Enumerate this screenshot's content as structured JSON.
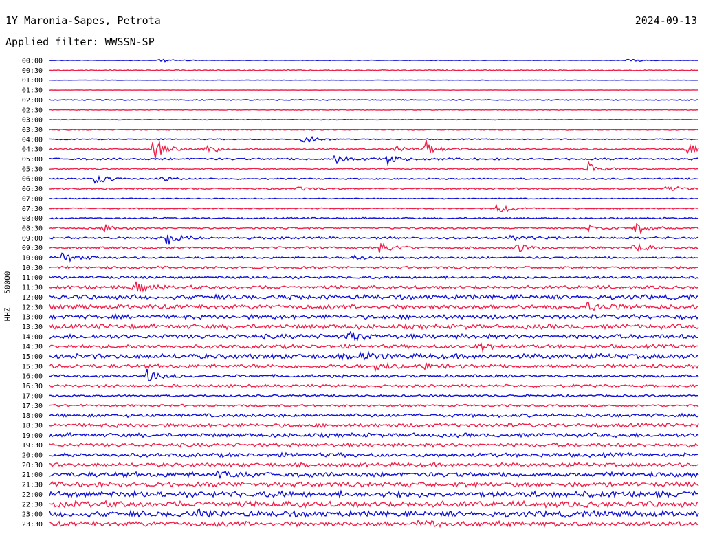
{
  "header": {
    "station": "1Y Maronia-Sapes, Petrota",
    "date": "2024-09-13",
    "filter_label": "Applied filter: WWSSN-SP"
  },
  "colors": {
    "trace_a": "#0f0fd6",
    "trace_b": "#f01f4a"
  },
  "chart_data": {
    "type": "line",
    "title": "1Y Maronia-Sapes, Petrota",
    "ylabel": "HHZ - 50000",
    "rows": [
      "00:00",
      "00:30",
      "01:00",
      "01:30",
      "02:00",
      "02:30",
      "03:00",
      "03:30",
      "04:00",
      "04:30",
      "05:00",
      "05:30",
      "06:00",
      "06:30",
      "07:00",
      "07:30",
      "08:00",
      "08:30",
      "09:00",
      "09:30",
      "10:00",
      "10:30",
      "11:00",
      "11:30",
      "12:00",
      "12:30",
      "13:00",
      "13:30",
      "14:00",
      "14:30",
      "15:00",
      "15:30",
      "16:00",
      "16:30",
      "17:00",
      "17:30",
      "18:00",
      "18:30",
      "19:00",
      "19:30",
      "20:00",
      "20:30",
      "21:00",
      "21:30",
      "22:00",
      "22:30",
      "23:00",
      "23:30"
    ],
    "noise_level": [
      0.3,
      0.6,
      0.2,
      0.2,
      0.6,
      0.4,
      0.3,
      0.5,
      0.6,
      0.8,
      1.2,
      0.8,
      0.8,
      0.9,
      0.6,
      0.7,
      0.9,
      1.0,
      1.3,
      1.3,
      1.2,
      1.5,
      1.6,
      2.0,
      2.6,
      2.6,
      2.6,
      2.8,
      2.7,
      2.3,
      3.0,
      2.4,
      1.6,
      1.6,
      1.2,
      1.4,
      2.0,
      2.3,
      2.4,
      2.2,
      2.4,
      2.3,
      2.8,
      2.9,
      3.6,
      3.6,
      3.5,
      3.0
    ],
    "events": [
      {
        "row": "00:00",
        "t": 0.17,
        "amp": 3
      },
      {
        "row": "00:00",
        "t": 0.89,
        "amp": 3
      },
      {
        "row": "04:00",
        "t": 0.39,
        "amp": 9
      },
      {
        "row": "04:30",
        "t": 0.16,
        "amp": 16
      },
      {
        "row": "04:30",
        "t": 0.24,
        "amp": 9
      },
      {
        "row": "04:30",
        "t": 0.53,
        "amp": 8
      },
      {
        "row": "04:30",
        "t": 0.58,
        "amp": 14
      },
      {
        "row": "04:30",
        "t": 0.98,
        "amp": 12
      },
      {
        "row": "05:00",
        "t": 0.44,
        "amp": 9
      },
      {
        "row": "05:00",
        "t": 0.52,
        "amp": 9
      },
      {
        "row": "05:30",
        "t": 0.83,
        "amp": 11
      },
      {
        "row": "06:00",
        "t": 0.07,
        "amp": 10
      },
      {
        "row": "06:00",
        "t": 0.17,
        "amp": 5
      },
      {
        "row": "06:30",
        "t": 0.38,
        "amp": 3
      },
      {
        "row": "06:30",
        "t": 0.95,
        "amp": 5
      },
      {
        "row": "07:30",
        "t": 0.69,
        "amp": 12
      },
      {
        "row": "08:30",
        "t": 0.08,
        "amp": 7
      },
      {
        "row": "08:30",
        "t": 0.83,
        "amp": 8
      },
      {
        "row": "08:30",
        "t": 0.9,
        "amp": 14
      },
      {
        "row": "09:00",
        "t": 0.18,
        "amp": 12
      },
      {
        "row": "09:00",
        "t": 0.71,
        "amp": 7
      },
      {
        "row": "09:30",
        "t": 0.51,
        "amp": 11
      },
      {
        "row": "09:30",
        "t": 0.72,
        "amp": 8
      },
      {
        "row": "09:30",
        "t": 0.9,
        "amp": 12
      },
      {
        "row": "10:00",
        "t": 0.02,
        "amp": 10
      },
      {
        "row": "10:00",
        "t": 0.47,
        "amp": 4
      },
      {
        "row": "11:30",
        "t": 0.13,
        "amp": 12
      },
      {
        "row": "12:30",
        "t": 0.83,
        "amp": 8
      },
      {
        "row": "14:00",
        "t": 0.46,
        "amp": 10
      },
      {
        "row": "14:30",
        "t": 0.66,
        "amp": 6
      },
      {
        "row": "15:00",
        "t": 0.48,
        "amp": 9
      },
      {
        "row": "15:30",
        "t": 0.5,
        "amp": 9
      },
      {
        "row": "15:30",
        "t": 0.58,
        "amp": 6
      },
      {
        "row": "16:00",
        "t": 0.15,
        "amp": 10
      },
      {
        "row": "21:00",
        "t": 0.26,
        "amp": 7
      },
      {
        "row": "23:00",
        "t": 0.23,
        "amp": 6
      },
      {
        "row": "23:30",
        "t": 0.57,
        "amp": 6
      }
    ]
  }
}
